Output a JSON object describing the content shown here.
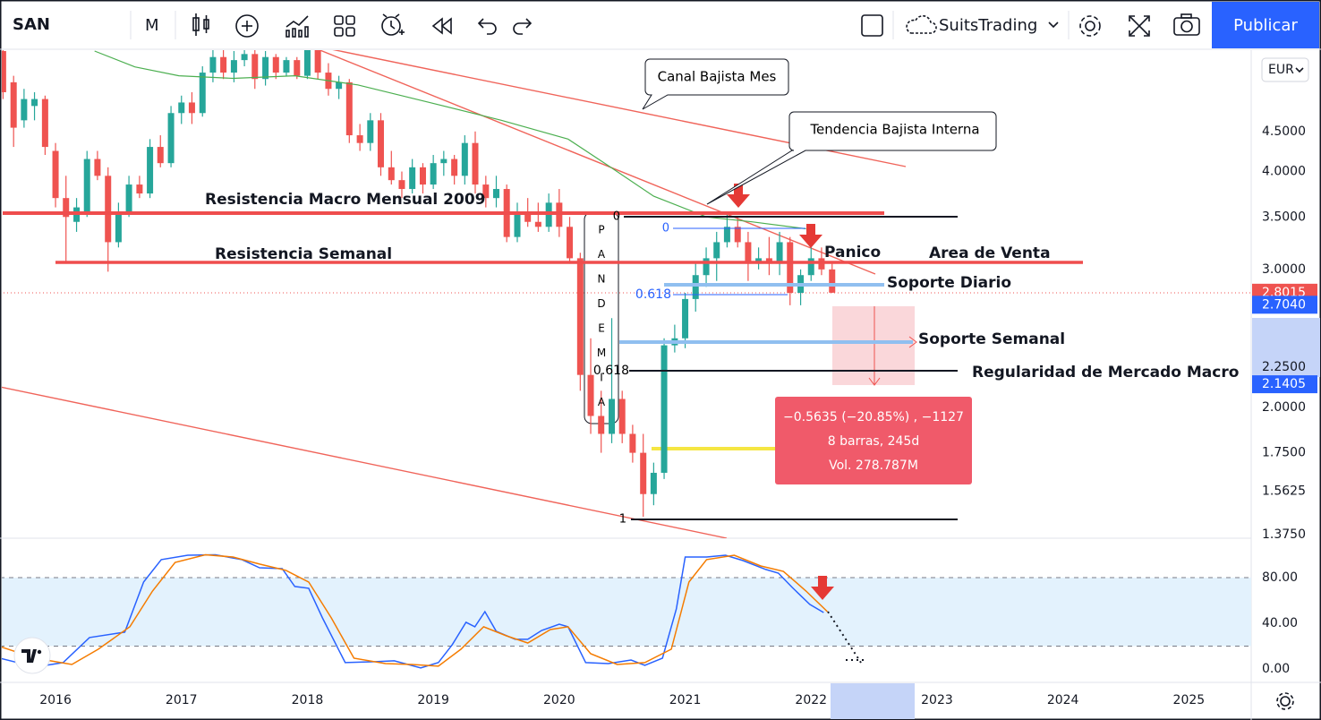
{
  "toolbar": {
    "symbol": "SAN",
    "interval": "M",
    "account": "SuitsTrading",
    "publish": "Publicar"
  },
  "currency": "EUR",
  "chart_data": [
    {
      "type": "candlestick",
      "log_scale": true,
      "ylim": [
        1.365,
        5.73
      ],
      "yticks": [
        {
          "value": 4.5,
          "label": "4.5000"
        },
        {
          "value": 4,
          "label": "4.0000"
        },
        {
          "value": 3.5,
          "label": "3.5000"
        },
        {
          "value": 3,
          "label": "3.0000"
        },
        {
          "value": 2.25,
          "label": "2.2500"
        },
        {
          "value": 2,
          "label": "2.0000"
        },
        {
          "value": 1.75,
          "label": "1.7500"
        },
        1.5625,
        {
          "value": 1.375,
          "label": "1.3750"
        }
      ],
      "xlim": [
        2015.559,
        2025.495
      ],
      "xticks": [
        2016,
        2017,
        2018,
        2019,
        2020,
        2021,
        2022,
        2023,
        2024,
        2025
      ],
      "up_color": "#26a69a",
      "down_color": "#ef5350",
      "x": [
        2015.583,
        2015.667,
        2015.75,
        2015.833,
        2015.917,
        2016,
        2016.083,
        2016.167,
        2016.25,
        2016.333,
        2016.417,
        2016.5,
        2016.583,
        2016.667,
        2016.75,
        2016.833,
        2016.917,
        2017,
        2017.083,
        2017.167,
        2017.25,
        2017.333,
        2017.417,
        2017.5,
        2017.583,
        2017.667,
        2017.75,
        2017.833,
        2017.917,
        2018,
        2018.083,
        2018.167,
        2018.25,
        2018.333,
        2018.417,
        2018.5,
        2018.583,
        2018.667,
        2018.75,
        2018.833,
        2018.917,
        2019,
        2019.083,
        2019.167,
        2019.25,
        2019.333,
        2019.417,
        2019.5,
        2019.583,
        2019.667,
        2019.75,
        2019.833,
        2019.917,
        2020,
        2020.083,
        2020.167,
        2020.25,
        2020.333,
        2020.417,
        2020.5,
        2020.583,
        2020.667,
        2020.75,
        2020.833,
        2020.917,
        2021,
        2021.083,
        2021.167,
        2021.25,
        2021.333,
        2021.417,
        2021.5,
        2021.583,
        2021.667,
        2021.75,
        2021.833,
        2021.917,
        2022,
        2022.083,
        2022.167
      ],
      "open": [
        5.7,
        5.2,
        4.65,
        4.85,
        4.95,
        4.25,
        3.7,
        3.45,
        3.55,
        4.15,
        3.95,
        3.25,
        3.55,
        3.85,
        3.75,
        4.3,
        4.1,
        4.75,
        4.9,
        4.75,
        5.35,
        5.6,
        5.35,
        5.55,
        5.65,
        5.25,
        5.6,
        5.35,
        5.55,
        5.3,
        5.8,
        5.35,
        5.1,
        5.2,
        4.45,
        4.35,
        4.65,
        4.05,
        3.9,
        3.8,
        4.05,
        3.85,
        4.1,
        4.15,
        3.95,
        4.35,
        3.85,
        3.7,
        3.8,
        3.3,
        3.55,
        3.45,
        3.4,
        3.65,
        3.4,
        3.1,
        2.2,
        1.95,
        1.85,
        2.05,
        1.85,
        1.75,
        1.55,
        1.65,
        2.4,
        2.45,
        2.75,
        2.95,
        3.1,
        3.25,
        3.4,
        3.25,
        3.05,
        3.1,
        3.05,
        3.25,
        2.8,
        2.95,
        3.1,
        3.0
      ],
      "high": [
        5.75,
        5.3,
        5.1,
        5.05,
        5.0,
        4.35,
        3.95,
        3.7,
        4.25,
        4.25,
        4.05,
        3.65,
        3.95,
        3.95,
        4.4,
        4.45,
        4.85,
        5.0,
        5.05,
        5.45,
        5.8,
        5.75,
        5.7,
        5.8,
        5.75,
        5.7,
        5.65,
        5.6,
        5.6,
        5.9,
        5.85,
        5.5,
        5.3,
        5.25,
        4.6,
        4.75,
        4.75,
        4.25,
        4.0,
        4.15,
        4.1,
        4.2,
        4.25,
        4.2,
        4.45,
        4.5,
        3.95,
        3.95,
        3.85,
        3.65,
        3.7,
        3.65,
        3.75,
        3.8,
        3.5,
        3.15,
        2.45,
        2.1,
        2.6,
        2.1,
        1.9,
        1.85,
        1.7,
        2.45,
        2.55,
        2.8,
        3.05,
        3.2,
        3.35,
        3.55,
        3.5,
        3.35,
        3.2,
        3.3,
        3.35,
        3.3,
        3.0,
        3.3,
        3.2,
        3.05
      ],
      "low": [
        4.95,
        4.3,
        4.55,
        4.65,
        4.2,
        3.6,
        3.05,
        3.35,
        3.5,
        3.9,
        2.98,
        3.2,
        3.5,
        3.7,
        3.7,
        4.05,
        4.05,
        4.6,
        4.6,
        4.7,
        5.2,
        5.25,
        5.2,
        5.45,
        5.1,
        5.15,
        5.25,
        5.3,
        5.25,
        5.25,
        5.25,
        5.0,
        4.95,
        4.35,
        4.25,
        4.25,
        3.95,
        3.85,
        3.7,
        3.75,
        3.75,
        3.8,
        3.95,
        3.85,
        3.85,
        3.75,
        3.6,
        3.6,
        3.25,
        3.25,
        3.4,
        3.35,
        3.35,
        3.3,
        3.05,
        2.1,
        1.85,
        1.75,
        1.8,
        1.8,
        1.7,
        1.45,
        1.5,
        1.62,
        2.35,
        2.38,
        2.65,
        2.85,
        2.9,
        3.2,
        3.2,
        2.9,
        3.0,
        2.95,
        2.95,
        2.7,
        2.7,
        2.9,
        2.95,
        2.8
      ],
      "close": [
        5.05,
        4.55,
        4.95,
        4.95,
        4.3,
        3.7,
        3.5,
        3.6,
        4.15,
        3.95,
        3.25,
        3.55,
        3.85,
        3.75,
        4.3,
        4.1,
        4.75,
        4.9,
        4.75,
        5.35,
        5.6,
        5.35,
        5.55,
        5.65,
        5.25,
        5.6,
        5.35,
        5.55,
        5.3,
        5.8,
        5.35,
        5.1,
        5.2,
        4.45,
        4.35,
        4.65,
        4.05,
        3.9,
        3.8,
        4.05,
        3.85,
        4.1,
        4.15,
        3.95,
        4.35,
        3.85,
        3.7,
        3.8,
        3.3,
        3.55,
        3.45,
        3.4,
        3.65,
        3.4,
        3.1,
        2.2,
        1.95,
        1.85,
        2.05,
        1.85,
        1.75,
        1.55,
        1.65,
        2.4,
        2.45,
        2.75,
        2.95,
        3.1,
        3.25,
        3.4,
        3.25,
        3.05,
        3.1,
        3.05,
        3.25,
        2.8,
        2.95,
        3.1,
        3.0,
        2.8015
      ],
      "ma": {
        "color": "#4caf50",
        "x": [
          2016.31,
          2016.63,
          2016.98,
          2017.41,
          2017.9,
          2018.4,
          2018.97,
          2019.54,
          2020.07,
          2020.39,
          2020.75,
          2021.17,
          2021.53,
          2021.96
        ],
        "values": [
          5.7,
          5.44,
          5.3,
          5.26,
          5.3,
          5.16,
          4.9,
          4.65,
          4.4,
          4.07,
          3.72,
          3.5,
          3.45,
          3.38
        ]
      },
      "last_price": 2.8015,
      "range_labels": [
        {
          "value": 2.704,
          "label": "2.7040"
        },
        2.1405
      ]
    },
    {
      "type": "line",
      "ylim": [
        -11.8,
        113.7
      ],
      "yticks": [
        {
          "value": 80,
          "label": "80.00"
        },
        {
          "value": 40,
          "label": "40.00"
        },
        {
          "value": 0,
          "label": "0.00"
        }
      ],
      "band": [
        20,
        80
      ],
      "band_color": "#e3f2fd",
      "series": [
        {
          "color": "#2962ff",
          "x": [
            2015.56,
            2015.84,
            2016.06,
            2016.27,
            2016.55,
            2016.7,
            2016.84,
            2017.05,
            2017.27,
            2017.48,
            2017.62,
            2017.8,
            2017.9,
            2018.01,
            2018.12,
            2018.3,
            2018.54,
            2018.69,
            2018.9,
            2019.04,
            2019.15,
            2019.26,
            2019.33,
            2019.41,
            2019.5,
            2019.65,
            2019.75,
            2019.86,
            2020.0,
            2020.07,
            2020.21,
            2020.39,
            2020.57,
            2020.68,
            2020.82,
            2020.93,
            2021.0,
            2021.17,
            2021.32,
            2021.46,
            2021.64,
            2021.74,
            2021.85,
            2021.99,
            2022.1
          ],
          "values": [
            9.4,
            1.6,
            5.5,
            27.5,
            32.2,
            76.1,
            95.7,
            99.6,
            100,
            95.7,
            88.6,
            87.8,
            72.2,
            70.6,
            44.7,
            5.5,
            6.3,
            7.1,
            0.8,
            5.5,
            21.2,
            40.8,
            36.9,
            50.2,
            32.9,
            25.9,
            25.9,
            33.7,
            39.2,
            36.9,
            5.5,
            4.7,
            7.8,
            3.1,
            9.4,
            52.5,
            98,
            98,
            99.6,
            94.9,
            87.1,
            83.9,
            71.4,
            56.5,
            49.4
          ]
        },
        {
          "color": "#f57c00",
          "x": [
            2015.56,
            2015.84,
            2016.13,
            2016.34,
            2016.59,
            2016.77,
            2016.95,
            2017.19,
            2017.41,
            2017.62,
            2017.83,
            2018.01,
            2018.19,
            2018.37,
            2018.62,
            2018.83,
            2019.04,
            2019.22,
            2019.4,
            2019.58,
            2019.75,
            2019.93,
            2020.07,
            2020.25,
            2020.46,
            2020.68,
            2020.89,
            2021.03,
            2021.17,
            2021.39,
            2021.6,
            2021.78,
            2021.96,
            2022.13
          ],
          "values": [
            19.6,
            9.4,
            3.9,
            17.3,
            36.9,
            68.2,
            93.3,
            100,
            98,
            91.8,
            86.3,
            76.1,
            44.7,
            9.4,
            4.7,
            3.9,
            2.4,
            17.3,
            36.9,
            29,
            22.7,
            34.5,
            36.9,
            13.3,
            3.9,
            5.5,
            17.3,
            76.1,
            95.7,
            99.6,
            90.2,
            85.5,
            68.2,
            50.2
          ]
        }
      ]
    }
  ],
  "annotations": {
    "channel": "Canal Bajista Mes",
    "internal_trend": "Tendencia Bajista Interna",
    "macro_resistance": "Resistencia Macro Mensual 2009",
    "weekly_resistance": "Resistencia Semanal",
    "panic": "Panico",
    "sell_area": "Area de Venta",
    "daily_support": "Soporte Diario",
    "weekly_support": "Soporte Semanal",
    "macro_regularity": "Regularidad de Mercado Macro",
    "pandemic_letters": [
      "P",
      "A",
      "N",
      "D",
      "E",
      "M",
      "I",
      "A"
    ],
    "fib_upper": [
      "0",
      "0.618"
    ],
    "fib_lower": [
      "0",
      "0.618",
      "1"
    ]
  },
  "measure": {
    "change": "−0.5635 (−20.85%) , −1127",
    "bars": "8 barras, 245d",
    "volume": "Vol. 278.787M"
  }
}
